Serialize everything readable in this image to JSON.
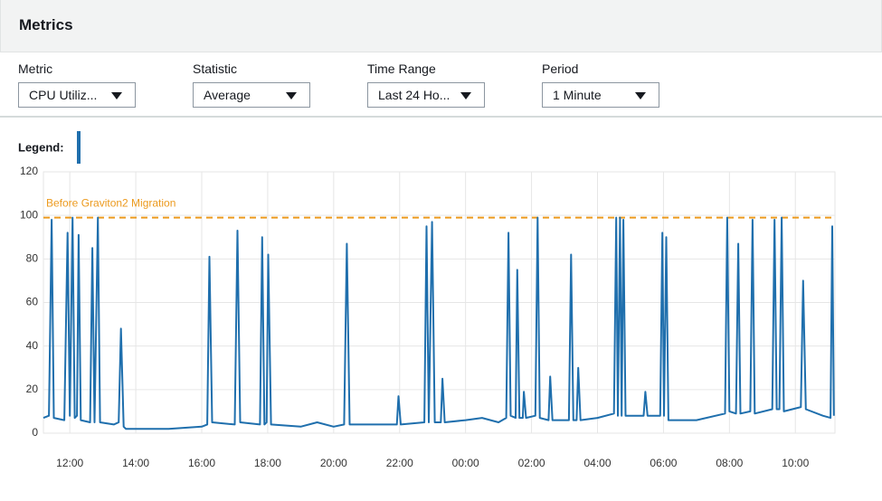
{
  "header": {
    "title": "Metrics"
  },
  "controls": [
    {
      "label": "Metric",
      "value": "CPU Utiliz..."
    },
    {
      "label": "Statistic",
      "value": "Average"
    },
    {
      "label": "Time Range",
      "value": "Last 24 Ho..."
    },
    {
      "label": "Period",
      "value": "1 Minute"
    }
  ],
  "chart_data": {
    "type": "line",
    "legend_label": "Legend:",
    "color": "#1f6fad",
    "x": [
      "11:12",
      "11:22",
      "11:27",
      "11:31",
      "11:50",
      "11:56",
      "12:00",
      "12:05",
      "12:09",
      "12:13",
      "12:16",
      "12:20",
      "12:37",
      "12:41",
      "12:45",
      "12:51",
      "12:55",
      "13:20",
      "13:29",
      "13:33",
      "13:38",
      "13:42",
      "15:00",
      "16:00",
      "16:10",
      "16:14",
      "16:19",
      "17:00",
      "17:05",
      "17:10",
      "17:46",
      "17:50",
      "17:54",
      "17:58",
      "18:01",
      "18:06",
      "19:00",
      "19:30",
      "20:00",
      "20:19",
      "20:24",
      "20:29",
      "21:00",
      "21:55",
      "21:58",
      "22:02",
      "22:45",
      "22:49",
      "22:53",
      "22:59",
      "23:04",
      "23:15",
      "23:18",
      "23:22",
      "00:00",
      "00:30",
      "01:00",
      "01:14",
      "01:18",
      "01:22",
      "01:31",
      "01:34",
      "01:38",
      "01:44",
      "01:46",
      "01:50",
      "02:07",
      "02:11",
      "02:15",
      "02:31",
      "02:34",
      "02:38",
      "03:08",
      "03:12",
      "03:16",
      "03:22",
      "03:25",
      "03:29",
      "04:00",
      "04:30",
      "04:34",
      "04:37",
      "04:41",
      "04:44",
      "04:47",
      "04:51",
      "05:24",
      "05:27",
      "05:31",
      "05:54",
      "05:58",
      "06:01",
      "06:05",
      "06:09",
      "07:00",
      "07:52",
      "07:56",
      "08:00",
      "08:12",
      "08:16",
      "08:20",
      "08:38",
      "08:42",
      "08:46",
      "09:18",
      "09:22",
      "09:26",
      "09:31",
      "09:35",
      "09:39",
      "10:10",
      "10:14",
      "10:19",
      "10:50",
      "11:04",
      "11:07",
      "11:10"
    ],
    "values": [
      7,
      8,
      98,
      7,
      6,
      92,
      8,
      99,
      7,
      8,
      91,
      6,
      5,
      85,
      5,
      99,
      5,
      4,
      5,
      48,
      3,
      2,
      2,
      3,
      4,
      81,
      5,
      4,
      93,
      5,
      4,
      90,
      4,
      5,
      82,
      4,
      3,
      5,
      3,
      4,
      87,
      4,
      4,
      4,
      17,
      4,
      5,
      95,
      5,
      97,
      5,
      5,
      25,
      5,
      6,
      7,
      5,
      7,
      92,
      8,
      7,
      75,
      7,
      7,
      19,
      7,
      8,
      99,
      7,
      6,
      26,
      6,
      6,
      82,
      6,
      6,
      30,
      6,
      7,
      9,
      99,
      8,
      99,
      8,
      98,
      8,
      8,
      19,
      8,
      8,
      92,
      8,
      90,
      6,
      6,
      9,
      99,
      10,
      9,
      87,
      9,
      10,
      98,
      9,
      11,
      98,
      11,
      11,
      99,
      10,
      12,
      70,
      11,
      8,
      7,
      95,
      8
    ],
    "xlim": [
      "11:12",
      "11:12"
    ],
    "xticks": [
      "12:00",
      "14:00",
      "16:00",
      "18:00",
      "20:00",
      "22:00",
      "00:00",
      "02:00",
      "04:00",
      "06:00",
      "08:00",
      "10:00"
    ],
    "ylim": [
      0,
      120
    ],
    "yticks": [
      0,
      20,
      40,
      60,
      80,
      100,
      120
    ],
    "grid": true,
    "annotation": {
      "text": "Before Graviton2 Migration",
      "value": 99,
      "color": "#ec9a1e"
    }
  }
}
